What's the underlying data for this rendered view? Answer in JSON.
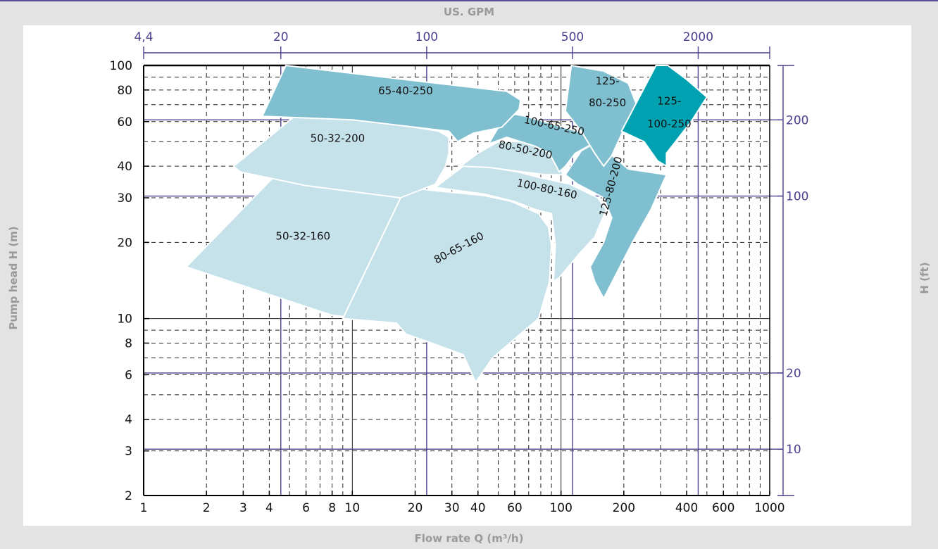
{
  "chart_data": {
    "type": "area",
    "title": "",
    "x_top_label": "US. GPM",
    "xlabel": "Flow rate Q (m³/h)",
    "ylabel": "Pump head H (m)",
    "y_right_label": "H (ft)",
    "x_scale": "log",
    "y_scale": "log",
    "xlim": [
      1,
      1000
    ],
    "ylim": [
      2,
      100
    ],
    "grid": true,
    "x_ticks": [
      1,
      2,
      3,
      4,
      6,
      8,
      10,
      20,
      30,
      40,
      60,
      100,
      200,
      400,
      600,
      1000
    ],
    "y_ticks": [
      2,
      3,
      4,
      6,
      8,
      10,
      20,
      30,
      40,
      60,
      80,
      100
    ],
    "x_top_ticks": [
      {
        "label": "4,4",
        "gpm": 4.4
      },
      {
        "label": "20",
        "gpm": 20
      },
      {
        "label": "100",
        "gpm": 100
      },
      {
        "label": "500",
        "gpm": 500
      },
      {
        "label": "2000",
        "gpm": 2000
      }
    ],
    "y_right_ticks": [
      {
        "label": "10",
        "ft": 10
      },
      {
        "label": "20",
        "ft": 20
      },
      {
        "label": "100",
        "ft": 100
      },
      {
        "label": "200",
        "ft": 200
      }
    ],
    "series": [
      {
        "name": "50-32-160",
        "color": "#c5e1e9",
        "label_pos": [
          5.8,
          20.5
        ],
        "label_rotation": 0,
        "points": [
          [
            1.6,
            16
          ],
          [
            4.3,
            37
          ],
          [
            16.5,
            32
          ],
          [
            17.8,
            29
          ],
          [
            17.5,
            17
          ],
          [
            18.5,
            8.5
          ],
          [
            18,
            9.2
          ],
          [
            16,
            9.7
          ],
          [
            8,
            10.3
          ],
          [
            1.6,
            16
          ]
        ]
      },
      {
        "name": "80-65-160",
        "color": "#c5e1e9",
        "label_pos": [
          31,
          18.5
        ],
        "label_rotation": -28,
        "points": [
          [
            9,
            10
          ],
          [
            16.3,
            9.6
          ],
          [
            18,
            8.7
          ],
          [
            24,
            8
          ],
          [
            34,
            7.2
          ],
          [
            39,
            5.6
          ],
          [
            47,
            7
          ],
          [
            78,
            10
          ],
          [
            88,
            14
          ],
          [
            90,
            19.5
          ],
          [
            87,
            23
          ],
          [
            78,
            26
          ],
          [
            58,
            29
          ],
          [
            43,
            30.6
          ],
          [
            25,
            32
          ],
          [
            18,
            33
          ],
          [
            9,
            10
          ]
        ]
      },
      {
        "name": "100-80-160",
        "color": "#c5e1e9",
        "label_pos": [
          85,
          31.5
        ],
        "label_rotation": 12,
        "points": [
          [
            25,
            33
          ],
          [
            34,
            40
          ],
          [
            42,
            40
          ],
          [
            62,
            38
          ],
          [
            80,
            36
          ],
          [
            110,
            34
          ],
          [
            150,
            30
          ],
          [
            165,
            27
          ],
          [
            145,
            21
          ],
          [
            122,
            18
          ],
          [
            98,
            14.5
          ],
          [
            92,
            14
          ],
          [
            94,
            19.5
          ],
          [
            90,
            26
          ],
          [
            75,
            27
          ],
          [
            60,
            29
          ],
          [
            43,
            31
          ],
          [
            25,
            33
          ]
        ]
      },
      {
        "name": "80-50-200",
        "color": "#c5e1e9",
        "label_pos": [
          67,
          45
        ],
        "label_rotation": 12,
        "points": [
          [
            33,
            40
          ],
          [
            40,
            45
          ],
          [
            50,
            50
          ],
          [
            65,
            50
          ],
          [
            86,
            47
          ],
          [
            97,
            44
          ],
          [
            102,
            37
          ],
          [
            85,
            37
          ],
          [
            65,
            38
          ],
          [
            46,
            39.5
          ],
          [
            33,
            40
          ]
        ]
      },
      {
        "name": "50-32-200",
        "color": "#c5e1e9",
        "label_pos": [
          8.5,
          50
        ],
        "label_rotation": 0,
        "points": [
          [
            2.7,
            40
          ],
          [
            5.8,
            67
          ],
          [
            26,
            55
          ],
          [
            29,
            52
          ],
          [
            29,
            45
          ],
          [
            28,
            40
          ],
          [
            25,
            34
          ],
          [
            17,
            30
          ],
          [
            6,
            33.5
          ],
          [
            2.9,
            38
          ],
          [
            2.7,
            40
          ]
        ]
      },
      {
        "name": "125-80-200",
        "color": "#80bfcf",
        "label_pos": [
          180,
          33
        ],
        "label_rotation": -75,
        "points": [
          [
            105,
            37
          ],
          [
            125,
            46
          ],
          [
            150,
            50
          ],
          [
            165,
            46
          ],
          [
            210,
            39
          ],
          [
            320,
            37
          ],
          [
            270,
            27
          ],
          [
            220,
            20
          ],
          [
            160,
            12
          ],
          [
            145,
            14
          ],
          [
            138,
            16
          ],
          [
            160,
            20
          ],
          [
            175,
            25
          ],
          [
            160,
            30
          ],
          [
            120,
            34
          ],
          [
            105,
            37
          ]
        ]
      },
      {
        "name": "100-65-250",
        "color": "#80bfcf",
        "label_pos": [
          92,
          56
        ],
        "label_rotation": 12,
        "points": [
          [
            55,
            65
          ],
          [
            68,
            63
          ],
          [
            95,
            58
          ],
          [
            120,
            55
          ],
          [
            150,
            51
          ],
          [
            135,
            48
          ],
          [
            117,
            45
          ],
          [
            105,
            40
          ],
          [
            98,
            38
          ],
          [
            88,
            45
          ],
          [
            75,
            48
          ],
          [
            55,
            52
          ],
          [
            45,
            49
          ],
          [
            55,
            65
          ]
        ]
      },
      {
        "name": "65-40-250",
        "color": "#80bfcf",
        "label_pos": [
          18,
          76
        ],
        "label_rotation": 0,
        "points": [
          [
            4.8,
            100
          ],
          [
            20,
            87
          ],
          [
            55,
            79
          ],
          [
            64,
            73
          ],
          [
            63,
            67
          ],
          [
            52,
            57
          ],
          [
            38,
            54
          ],
          [
            32,
            50
          ],
          [
            29,
            55
          ],
          [
            10,
            61
          ],
          [
            3.7,
            63
          ],
          [
            4.8,
            100
          ]
        ]
      },
      {
        "name": "125-80-250",
        "color": "#80bfcf",
        "label_pos": [
          165,
          74
        ],
        "label_rotation": 0,
        "points": [
          [
            112,
            100
          ],
          [
            160,
            95
          ],
          [
            210,
            85
          ],
          [
            230,
            70
          ],
          [
            200,
            56
          ],
          [
            175,
            44
          ],
          [
            160,
            40
          ],
          [
            145,
            45
          ],
          [
            125,
            55
          ],
          [
            105,
            66
          ],
          [
            112,
            100
          ]
        ]
      },
      {
        "name": "125-100-250",
        "color": "#00a2b1",
        "label_pos": [
          330,
          62
        ],
        "label_rotation": 0,
        "points": [
          [
            285,
            100
          ],
          [
            325,
            100
          ],
          [
            400,
            88
          ],
          [
            500,
            75
          ],
          [
            420,
            60
          ],
          [
            320,
            45
          ],
          [
            320,
            40
          ],
          [
            290,
            42
          ],
          [
            250,
            50
          ],
          [
            195,
            55
          ],
          [
            285,
            100
          ]
        ]
      }
    ],
    "region_labels": {
      "r1": "65-40-250",
      "r2": "50-32-200",
      "r3": "50-32-160",
      "r4": "80-65-160",
      "r5": "100-80-160",
      "r6": "80-50-200",
      "r7": "100-65-250",
      "r8a": "125-",
      "r8b": "80-250",
      "r9a": "125-",
      "r9b": "100-250",
      "r10": "125-80-200"
    }
  }
}
